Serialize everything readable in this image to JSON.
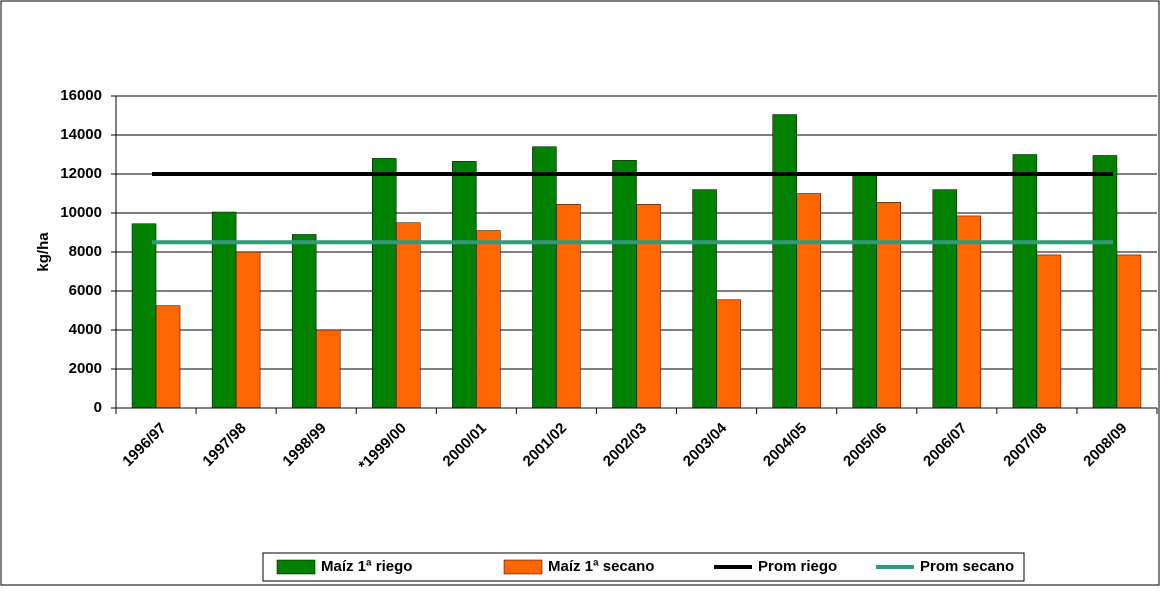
{
  "chart_data": {
    "type": "bar",
    "y_label": "kg/ha",
    "categories": [
      "1996/97",
      "1997/98",
      "1998/99",
      "*1999/00",
      "2000/01",
      "2001/02",
      "2002/03",
      "2003/04",
      "2004/05",
      "2005/06",
      "2006/07",
      "2007/08",
      "2008/09"
    ],
    "series": [
      {
        "name": "Maíz 1ª riego",
        "color": "#008000",
        "type": "bar",
        "values": [
          9450,
          10050,
          8900,
          12800,
          12650,
          13400,
          12700,
          11200,
          15050,
          12000,
          11200,
          13000,
          12950
        ]
      },
      {
        "name": "Maíz 1ª secano",
        "color": "#ff6600",
        "type": "bar",
        "values": [
          5250,
          8000,
          4000,
          9500,
          9100,
          10450,
          10450,
          5550,
          11000,
          10550,
          9850,
          7850,
          7850
        ]
      },
      {
        "name": "Prom riego",
        "color": "#000000",
        "type": "line",
        "values": [
          12000,
          12000,
          12000,
          12000,
          12000,
          12000,
          12000,
          12000,
          12000,
          12000,
          12000,
          12000,
          12000
        ]
      },
      {
        "name": "Prom secano",
        "color": "#339977",
        "type": "line",
        "values": [
          8500,
          8500,
          8500,
          8500,
          8500,
          8500,
          8500,
          8500,
          8500,
          8500,
          8500,
          8500,
          8500
        ]
      }
    ],
    "ylim": [
      0,
      16000
    ],
    "yticks": [
      0,
      2000,
      4000,
      6000,
      8000,
      10000,
      12000,
      14000,
      16000
    ],
    "grid": true
  }
}
